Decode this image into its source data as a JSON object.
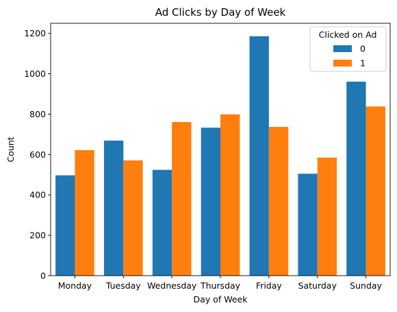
{
  "chart_data": {
    "type": "bar",
    "title": "Ad Clicks by Day of Week",
    "xlabel": "Day of Week",
    "ylabel": "Count",
    "categories": [
      "Monday",
      "Tuesday",
      "Wednesday",
      "Thursday",
      "Friday",
      "Saturday",
      "Sunday"
    ],
    "series": [
      {
        "name": "0",
        "color": "#1f77b4",
        "values": [
          497,
          669,
          524,
          733,
          1186,
          505,
          961
        ]
      },
      {
        "name": "1",
        "color": "#ff7f0e",
        "values": [
          622,
          571,
          761,
          799,
          737,
          585,
          838
        ]
      }
    ],
    "ylim": [
      0,
      1250
    ],
    "yticks": [
      0,
      200,
      400,
      600,
      800,
      1000,
      1200
    ],
    "grid": false,
    "legend": {
      "title": "Clicked on Ad",
      "placement": "top-right"
    }
  }
}
